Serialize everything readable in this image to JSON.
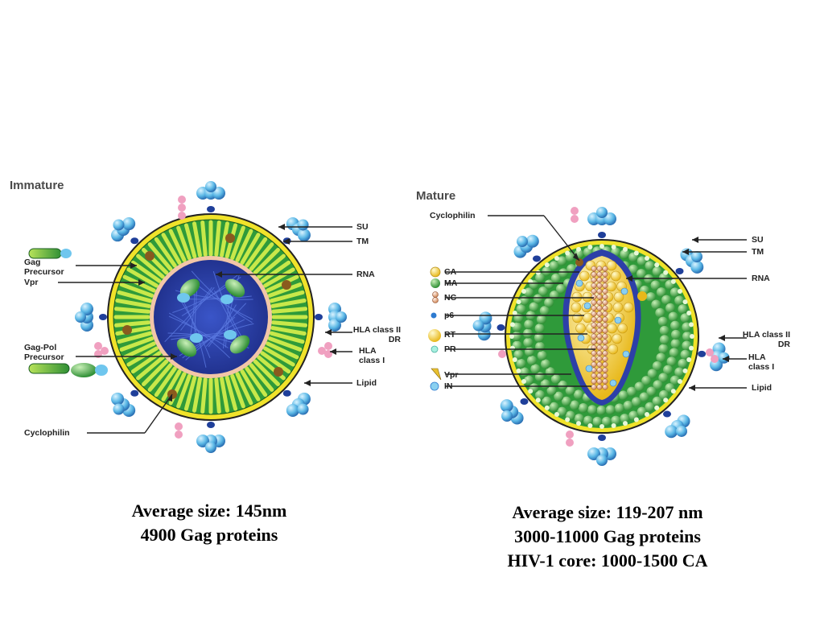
{
  "immature": {
    "title": "Immature",
    "labels": {
      "su": "SU",
      "tm": "TM",
      "rna": "RNA",
      "hla_class2": "HLA class II  DR",
      "hla_class1": "HLA class I",
      "lipid": "Lipid",
      "gag_precursor": "Gag Precursor",
      "vpr": "Vpr",
      "gagpol_precursor": "Gag-Pol Precursor",
      "cyclophilin": "Cyclophilin"
    },
    "caption": [
      "Average size: 145nm",
      "4900 Gag proteins"
    ]
  },
  "mature": {
    "title": "Mature",
    "labels": {
      "cyclophilin": "Cyclophilin",
      "su": "SU",
      "tm": "TM",
      "rna": "RNA",
      "hla_class2": "HLA class II  DR",
      "hla_class1": "HLA class I",
      "lipid": "Lipid"
    },
    "legend": [
      "CA",
      "MA",
      "NC",
      "p6",
      "RT",
      "PR",
      "Vpr",
      "IN"
    ],
    "caption": [
      "Average size: 119-207 nm",
      "3000-11000 Gag proteins",
      "HIV-1 core: 1000-1500 CA"
    ]
  },
  "colors": {
    "envelope_yellow": "#f0e22a",
    "lipid_green": "#2f9a3a",
    "core_blue": "#2d3fa8",
    "spike_blue": "#5bb8e6",
    "ca_yellow": "#f5d235",
    "rna_pink": "#e8a0b8"
  }
}
